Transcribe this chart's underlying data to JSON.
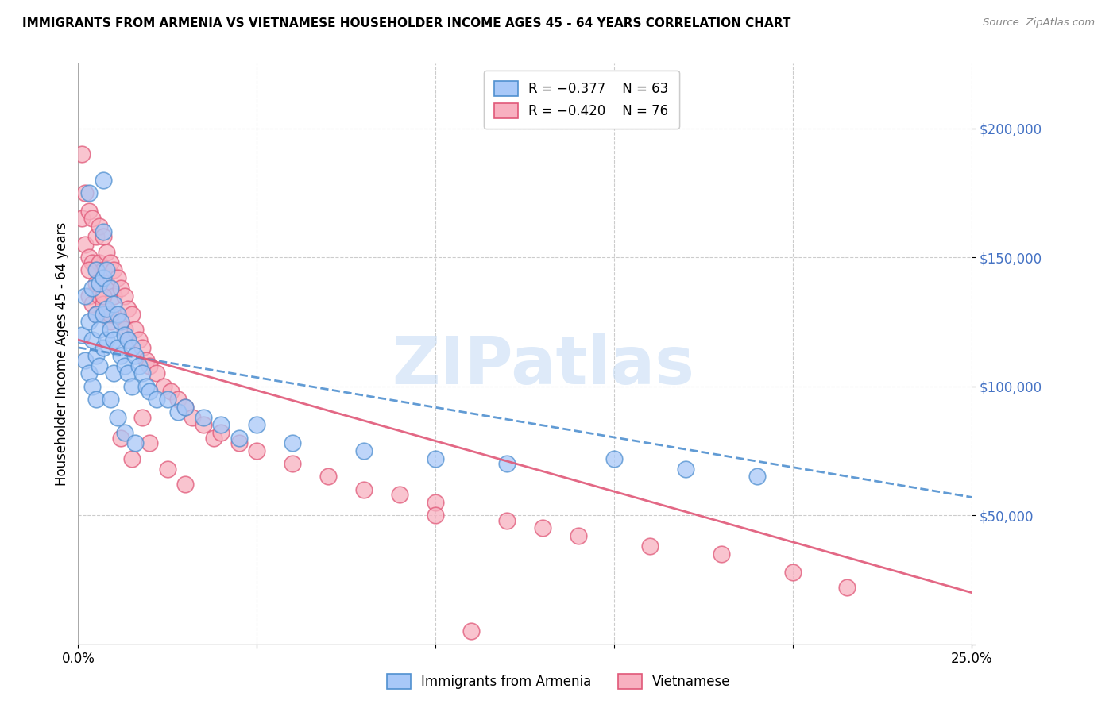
{
  "title": "IMMIGRANTS FROM ARMENIA VS VIETNAMESE HOUSEHOLDER INCOME AGES 45 - 64 YEARS CORRELATION CHART",
  "source": "Source: ZipAtlas.com",
  "ylabel": "Householder Income Ages 45 - 64 years",
  "xmin": 0.0,
  "xmax": 0.25,
  "ymin": 0,
  "ymax": 225000,
  "armenia_color": "#a8c8f8",
  "armenia_edge": "#5090d0",
  "vietnamese_color": "#f8b0c0",
  "vietnamese_edge": "#e05878",
  "arm_line_color": "#5090d0",
  "viet_line_color": "#e05878",
  "arm_line_y0": 115000,
  "arm_line_y1": 57000,
  "viet_line_y0": 118000,
  "viet_line_y1": 20000,
  "watermark": "ZIPatlas",
  "yticks": [
    0,
    50000,
    100000,
    150000,
    200000
  ],
  "ytick_labels": [
    "",
    "$50,000",
    "$100,000",
    "$150,000",
    "$200,000"
  ],
  "armenia_x": [
    0.001,
    0.002,
    0.002,
    0.003,
    0.003,
    0.004,
    0.004,
    0.004,
    0.005,
    0.005,
    0.005,
    0.005,
    0.006,
    0.006,
    0.006,
    0.007,
    0.007,
    0.007,
    0.007,
    0.008,
    0.008,
    0.008,
    0.009,
    0.009,
    0.01,
    0.01,
    0.01,
    0.011,
    0.011,
    0.012,
    0.012,
    0.013,
    0.013,
    0.014,
    0.014,
    0.015,
    0.015,
    0.016,
    0.017,
    0.018,
    0.019,
    0.02,
    0.022,
    0.025,
    0.028,
    0.03,
    0.035,
    0.04,
    0.045,
    0.05,
    0.06,
    0.08,
    0.1,
    0.12,
    0.15,
    0.17,
    0.19,
    0.007,
    0.009,
    0.011,
    0.003,
    0.013,
    0.016
  ],
  "armenia_y": [
    120000,
    135000,
    110000,
    125000,
    105000,
    138000,
    118000,
    100000,
    145000,
    128000,
    112000,
    95000,
    140000,
    122000,
    108000,
    160000,
    142000,
    128000,
    115000,
    145000,
    130000,
    118000,
    138000,
    122000,
    132000,
    118000,
    105000,
    128000,
    115000,
    125000,
    112000,
    120000,
    108000,
    118000,
    105000,
    115000,
    100000,
    112000,
    108000,
    105000,
    100000,
    98000,
    95000,
    95000,
    90000,
    92000,
    88000,
    85000,
    80000,
    85000,
    78000,
    75000,
    72000,
    70000,
    72000,
    68000,
    65000,
    180000,
    95000,
    88000,
    175000,
    82000,
    78000
  ],
  "vietnamese_x": [
    0.001,
    0.001,
    0.002,
    0.002,
    0.003,
    0.003,
    0.003,
    0.004,
    0.004,
    0.004,
    0.005,
    0.005,
    0.005,
    0.006,
    0.006,
    0.006,
    0.007,
    0.007,
    0.007,
    0.008,
    0.008,
    0.008,
    0.009,
    0.009,
    0.009,
    0.01,
    0.01,
    0.011,
    0.011,
    0.012,
    0.012,
    0.013,
    0.013,
    0.014,
    0.014,
    0.015,
    0.016,
    0.017,
    0.018,
    0.019,
    0.02,
    0.022,
    0.024,
    0.026,
    0.028,
    0.03,
    0.032,
    0.035,
    0.038,
    0.04,
    0.045,
    0.05,
    0.06,
    0.07,
    0.08,
    0.09,
    0.1,
    0.12,
    0.14,
    0.16,
    0.18,
    0.2,
    0.215,
    0.003,
    0.005,
    0.007,
    0.009,
    0.012,
    0.015,
    0.018,
    0.02,
    0.025,
    0.03,
    0.1,
    0.13,
    0.11
  ],
  "vietnamese_y": [
    190000,
    165000,
    175000,
    155000,
    168000,
    150000,
    135000,
    165000,
    148000,
    132000,
    158000,
    145000,
    128000,
    162000,
    148000,
    135000,
    158000,
    145000,
    132000,
    152000,
    140000,
    128000,
    148000,
    138000,
    125000,
    145000,
    135000,
    142000,
    128000,
    138000,
    125000,
    135000,
    122000,
    130000,
    118000,
    128000,
    122000,
    118000,
    115000,
    110000,
    108000,
    105000,
    100000,
    98000,
    95000,
    92000,
    88000,
    85000,
    80000,
    82000,
    78000,
    75000,
    70000,
    65000,
    60000,
    58000,
    55000,
    48000,
    42000,
    38000,
    35000,
    28000,
    22000,
    145000,
    140000,
    135000,
    128000,
    80000,
    72000,
    88000,
    78000,
    68000,
    62000,
    50000,
    45000,
    5000
  ]
}
